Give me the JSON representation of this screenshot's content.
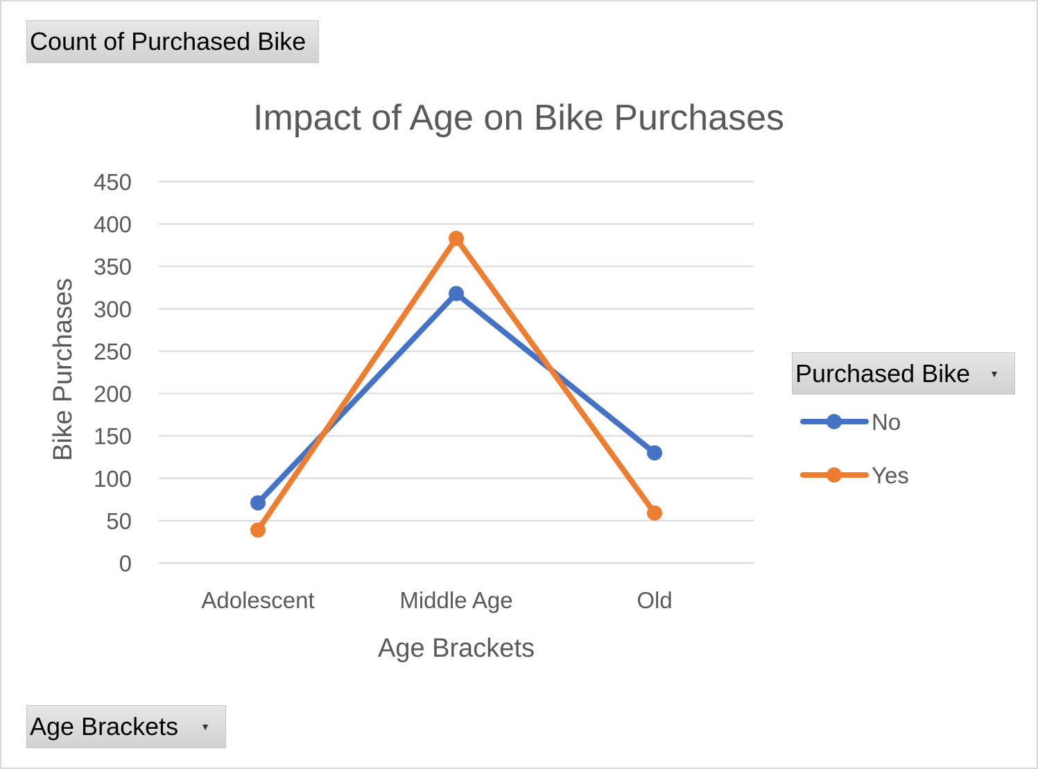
{
  "field_buttons": {
    "values_field": "Count of Purchased Bike",
    "legend_field": "Purchased Bike",
    "axis_field": "Age Brackets",
    "dropdown_icon": "dropdown-arrow-icon"
  },
  "chart_data": {
    "type": "line",
    "title": "Impact of Age on Bike Purchases",
    "xlabel": "Age Brackets",
    "ylabel": "Bike Purchases",
    "categories": [
      "Adolescent",
      "Middle Age",
      "Old"
    ],
    "ylim": [
      0,
      450
    ],
    "yticks": [
      0,
      50,
      100,
      150,
      200,
      250,
      300,
      350,
      400,
      450
    ],
    "grid": true,
    "legend_position": "right",
    "series": [
      {
        "name": "No",
        "values": [
          71,
          318,
          130
        ],
        "color": "#4472C4"
      },
      {
        "name": "Yes",
        "values": [
          39,
          383,
          59
        ],
        "color": "#ED7D31"
      }
    ]
  }
}
